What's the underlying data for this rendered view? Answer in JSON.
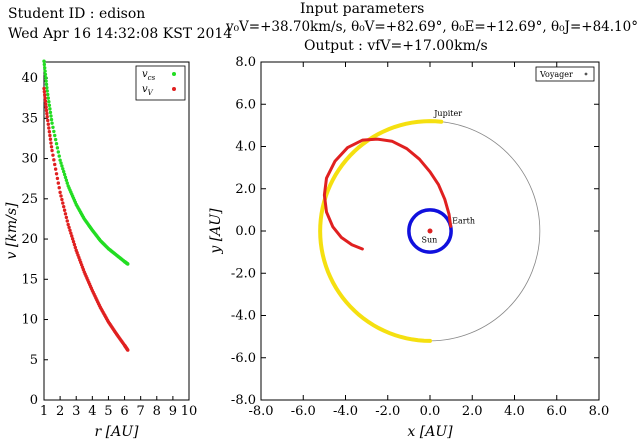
{
  "header": {
    "student_id": "Student ID : edison",
    "datetime": "Wed Apr 16 14:32:08 KST 2014",
    "params_title": "Input parameters",
    "params_line": "v₀V=+38.70km/s, θ₀V=+82.69°, θ₀E=+12.69°, θ₀J=+84.10°",
    "output_line": "Output : vfV=+17.00km/s"
  },
  "chart_data": [
    {
      "type": "scatter",
      "xlabel": "r [AU]",
      "ylabel": "v [km/s]",
      "xlim": [
        1,
        10
      ],
      "ylim": [
        0,
        42
      ],
      "xticks": [
        "1",
        "2",
        "3",
        "4",
        "5",
        "6",
        "7",
        "8",
        "9",
        "10"
      ],
      "yticks": [
        "0",
        "5",
        "10",
        "15",
        "20",
        "25",
        "30",
        "35",
        "40"
      ],
      "legend_position": "top-right",
      "series": [
        {
          "name": "v_cs",
          "color": "#22dd22",
          "x": [
            1.0,
            1.2,
            1.5,
            2.0,
            2.5,
            3.0,
            3.5,
            4.0,
            4.5,
            5.0,
            5.5,
            6.0,
            6.2
          ],
          "y": [
            42.1,
            38.4,
            34.4,
            29.8,
            26.6,
            24.3,
            22.5,
            21.1,
            19.8,
            18.8,
            18.0,
            17.2,
            16.9
          ]
        },
        {
          "name": "v_V",
          "color": "#e02020",
          "x": [
            1.0,
            1.2,
            1.5,
            2.0,
            2.5,
            3.0,
            3.5,
            4.0,
            4.5,
            5.0,
            5.5,
            6.0,
            6.2
          ],
          "y": [
            38.7,
            35.2,
            31.0,
            25.8,
            21.8,
            18.6,
            15.9,
            13.6,
            11.5,
            9.7,
            8.2,
            6.8,
            6.2
          ]
        }
      ]
    },
    {
      "type": "line",
      "xlabel": "x [AU]",
      "ylabel": "y [AU]",
      "xlim": [
        -8,
        8
      ],
      "ylim": [
        -8,
        8
      ],
      "xticks": [
        "-8.0",
        "-6.0",
        "-4.0",
        "-2.0",
        "0.0",
        "2.0",
        "4.0",
        "6.0",
        "8.0"
      ],
      "yticks": [
        "-8.0",
        "-6.0",
        "-4.0",
        "-2.0",
        "0.0",
        "2.0",
        "4.0",
        "6.0",
        "8.0"
      ],
      "legend_position": "top-right",
      "legend": [
        "Voyager"
      ],
      "annotations": [
        "Jupiter",
        "Earth",
        "Sun"
      ],
      "earth_orbit": {
        "radius": 1.0,
        "color": "#1010dd"
      },
      "jupiter_orbit": {
        "radius": 5.2,
        "color": "#888888"
      },
      "jupiter_arc": {
        "color": "#f5e010",
        "start_deg": 84.1,
        "end_deg": 270.0
      },
      "sun": {
        "x": 0.0,
        "y": 0.0,
        "color": "#dd2222"
      },
      "voyager_path": {
        "color": "#e02020",
        "x": [
          0.98,
          0.9,
          0.7,
          0.4,
          0.0,
          -0.5,
          -1.1,
          -1.8,
          -2.5,
          -3.2,
          -3.9,
          -4.5,
          -4.9,
          -5.0,
          -4.9,
          -4.6,
          -4.2,
          -3.7,
          -3.2
        ],
        "y": [
          0.22,
          0.8,
          1.5,
          2.2,
          2.8,
          3.4,
          3.9,
          4.25,
          4.35,
          4.3,
          3.95,
          3.3,
          2.5,
          1.7,
          0.9,
          0.2,
          -0.3,
          -0.65,
          -0.85
        ]
      }
    }
  ]
}
